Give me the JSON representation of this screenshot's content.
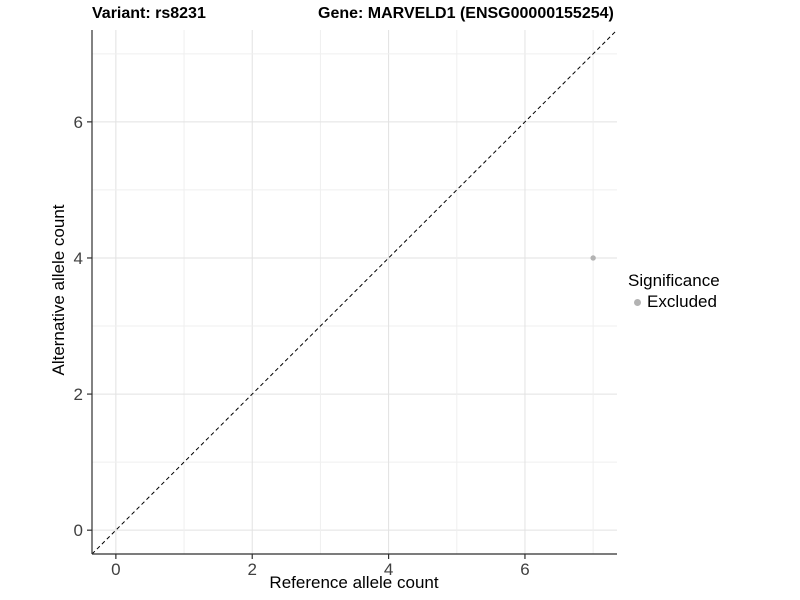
{
  "chart_data": {
    "type": "scatter",
    "titles": {
      "left": "Variant: rs8231",
      "right": "Gene: MARVELD1 (ENSG00000155254)"
    },
    "xlabel": "Reference allele count",
    "ylabel": "Alternative allele count",
    "xlim": [
      -0.35,
      7.35
    ],
    "ylim": [
      -0.35,
      7.35
    ],
    "xticks": [
      0,
      2,
      4,
      6
    ],
    "yticks": [
      0,
      2,
      4,
      6
    ],
    "grid_lines": [
      0,
      1,
      2,
      3,
      4,
      5,
      6,
      7
    ],
    "grid": true,
    "identity_line": {
      "style": "dashed",
      "x1": -0.35,
      "y1": -0.35,
      "x2": 7.35,
      "y2": 7.35,
      "color": "#000000"
    },
    "series": [
      {
        "name": "Excluded",
        "color": "#b3b3b3",
        "points": [
          {
            "x": 7,
            "y": 4
          }
        ]
      }
    ],
    "legend": {
      "title": "Significance",
      "position": "right",
      "items": [
        {
          "label": "Excluded",
          "color": "#b3b3b3",
          "marker": "circle-icon"
        }
      ]
    },
    "colors": {
      "axis": "#2f2f2f",
      "grid_major": "#e2e2e2",
      "grid_minor": "#efefef",
      "tick_label": "#404040",
      "background": "#ffffff"
    }
  }
}
